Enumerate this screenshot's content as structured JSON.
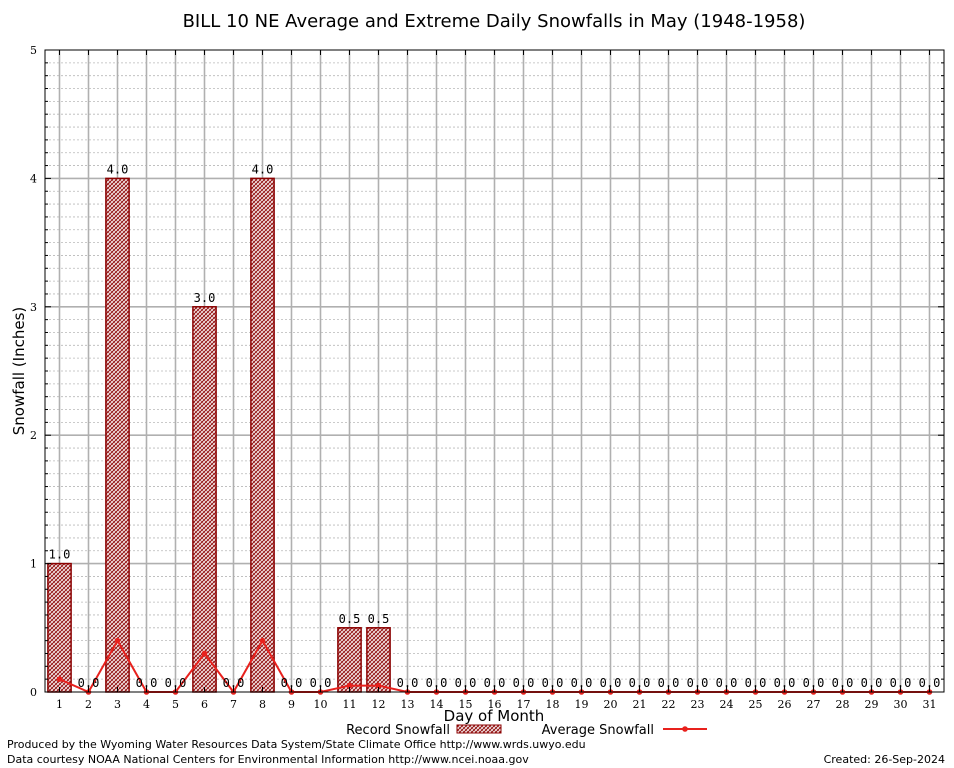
{
  "chart_data": {
    "type": "bar",
    "title": "BILL 10 NE Average and Extreme Daily Snowfalls in May (1948-1958)",
    "xlabel": "Day of Month",
    "ylabel": "Snowfall (Inches)",
    "ylim": [
      0,
      5
    ],
    "yticks": [
      "0",
      "1",
      "2",
      "3",
      "4",
      "5"
    ],
    "grid": true,
    "legend_placement": "bottom",
    "categories": [
      "1",
      "2",
      "3",
      "4",
      "5",
      "6",
      "7",
      "8",
      "9",
      "10",
      "11",
      "12",
      "13",
      "14",
      "15",
      "16",
      "17",
      "18",
      "19",
      "20",
      "21",
      "22",
      "23",
      "24",
      "25",
      "26",
      "27",
      "28",
      "29",
      "30",
      "31"
    ],
    "series": [
      {
        "name": "Record Snowfall",
        "type": "bar",
        "color": "#8b0000",
        "values": [
          1.0,
          0.0,
          4.0,
          0.0,
          0.0,
          3.0,
          0.0,
          4.0,
          0.0,
          0.0,
          0.5,
          0.5,
          0.0,
          0.0,
          0.0,
          0.0,
          0.0,
          0.0,
          0.0,
          0.0,
          0.0,
          0.0,
          0.0,
          0.0,
          0.0,
          0.0,
          0.0,
          0.0,
          0.0,
          0.0,
          0.0
        ],
        "labels": [
          "1.0",
          "0.0",
          "4.0",
          "0.0",
          "0.0",
          "3.0",
          "0.0",
          "4.0",
          "0.0",
          "0.0",
          "0.5",
          "0.5",
          "0.0",
          "0.0",
          "0.0",
          "0.0",
          "0.0",
          "0.0",
          "0.0",
          "0.0",
          "0.0",
          "0.0",
          "0.0",
          "0.0",
          "0.0",
          "0.0",
          "0.0",
          "0.0",
          "0.0",
          "0.0",
          "0.0"
        ]
      },
      {
        "name": "Average Snowfall",
        "type": "line",
        "color": "#e8211d",
        "values": [
          0.1,
          0.0,
          0.4,
          0.0,
          0.0,
          0.3,
          0.0,
          0.4,
          0.0,
          0.0,
          0.05,
          0.05,
          0.0,
          0.0,
          0.0,
          0.0,
          0.0,
          0.0,
          0.0,
          0.0,
          0.0,
          0.0,
          0.0,
          0.0,
          0.0,
          0.0,
          0.0,
          0.0,
          0.0,
          0.0,
          0.0
        ]
      }
    ]
  },
  "footer": {
    "produced_by": "Produced by the Wyoming Water Resources Data System/State Climate Office http://www.wrds.uwyo.edu",
    "data_courtesy": "Data courtesy NOAA National Centers for Environmental Information http://www.ncei.noaa.gov",
    "created": "Created:  26-Sep-2024"
  }
}
